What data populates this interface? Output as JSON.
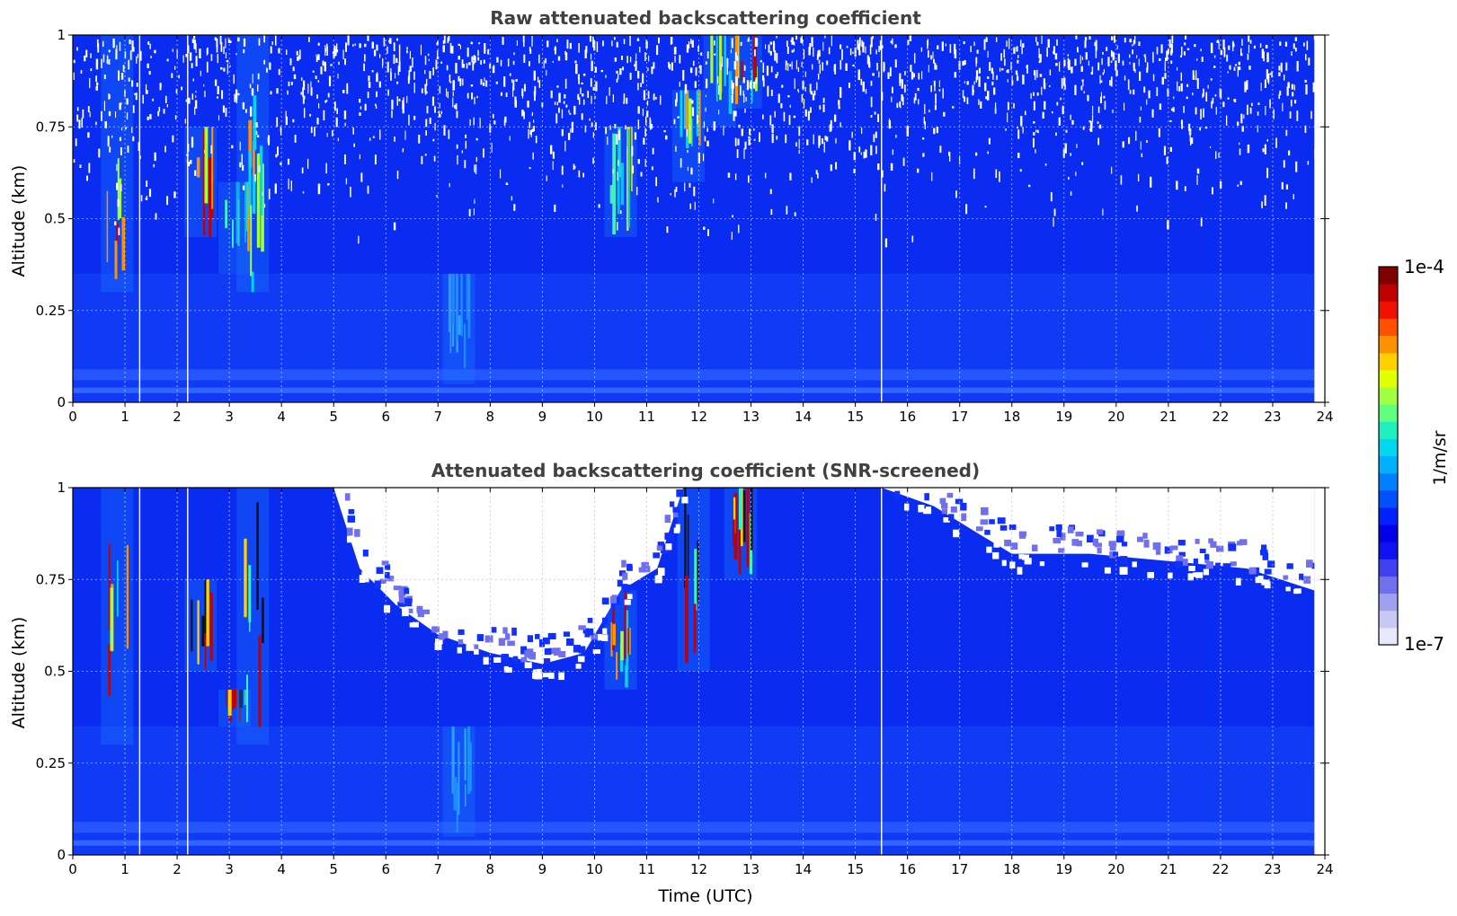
{
  "chart_data": [
    {
      "type": "heatmap",
      "title": "Raw attenuated backscattering coefficient",
      "xlabel": "",
      "ylabel": "Altitude (km)",
      "xlim": [
        0,
        24
      ],
      "ylim": [
        0,
        1
      ],
      "x_ticks": [
        0,
        1,
        2,
        3,
        4,
        5,
        6,
        7,
        8,
        9,
        10,
        11,
        12,
        13,
        14,
        15,
        16,
        17,
        18,
        19,
        20,
        21,
        22,
        23,
        24
      ],
      "y_ticks": [
        0,
        0.25,
        0.5,
        0.75,
        1
      ],
      "y_tick_labels": [
        "0",
        "0.25",
        "0.5",
        "0.75",
        "1"
      ],
      "grid": true,
      "data_end_time": 23.8,
      "gap_times": [
        1.28,
        2.2,
        15.5
      ],
      "screened": false,
      "features": [
        {
          "t": 0.85,
          "alt_bottom": 0.3,
          "alt_top": 1.0,
          "intensity": "high"
        },
        {
          "t": 2.45,
          "alt_bottom": 0.45,
          "alt_top": 0.75,
          "intensity": "high"
        },
        {
          "t": 3.1,
          "alt_bottom": 0.35,
          "alt_top": 0.6,
          "intensity": "medium"
        },
        {
          "t": 3.45,
          "alt_bottom": 0.3,
          "alt_top": 1.0,
          "intensity": "high"
        },
        {
          "t": 7.4,
          "alt_bottom": 0.05,
          "alt_top": 0.35,
          "intensity": "low"
        },
        {
          "t": 10.5,
          "alt_bottom": 0.45,
          "alt_top": 0.75,
          "intensity": "medium"
        },
        {
          "t": 11.8,
          "alt_bottom": 0.6,
          "alt_top": 0.85,
          "intensity": "high"
        },
        {
          "t": 12.4,
          "alt_bottom": 0.75,
          "alt_top": 1.0,
          "intensity": "high"
        },
        {
          "t": 12.9,
          "alt_bottom": 0.8,
          "alt_top": 1.0,
          "intensity": "high"
        }
      ]
    },
    {
      "type": "heatmap",
      "title": "Attenuated backscattering coefficient (SNR-screened)",
      "xlabel": "Time (UTC)",
      "ylabel": "Altitude (km)",
      "xlim": [
        0,
        24
      ],
      "ylim": [
        0,
        1
      ],
      "x_ticks": [
        0,
        1,
        2,
        3,
        4,
        5,
        6,
        7,
        8,
        9,
        10,
        11,
        12,
        13,
        14,
        15,
        16,
        17,
        18,
        19,
        20,
        21,
        22,
        23,
        24
      ],
      "y_ticks": [
        0,
        0.25,
        0.5,
        0.75,
        1
      ],
      "y_tick_labels": [
        "0",
        "0.25",
        "0.5",
        "0.75",
        "1"
      ],
      "grid": true,
      "data_end_time": 23.8,
      "gap_times": [
        1.28,
        2.2,
        15.5
      ],
      "screened": true,
      "screen_boundary": [
        {
          "t": 0.0,
          "alt": 1.0
        },
        {
          "t": 5.0,
          "alt": 1.0
        },
        {
          "t": 5.5,
          "alt": 0.78
        },
        {
          "t": 6.2,
          "alt": 0.68
        },
        {
          "t": 7.0,
          "alt": 0.6
        },
        {
          "t": 8.0,
          "alt": 0.55
        },
        {
          "t": 9.0,
          "alt": 0.52
        },
        {
          "t": 9.8,
          "alt": 0.55
        },
        {
          "t": 10.5,
          "alt": 0.72
        },
        {
          "t": 11.2,
          "alt": 0.78
        },
        {
          "t": 11.7,
          "alt": 1.0
        },
        {
          "t": 13.5,
          "alt": 1.0
        },
        {
          "t": 14.2,
          "alt": 1.0
        },
        {
          "t": 15.5,
          "alt": 1.0
        },
        {
          "t": 16.5,
          "alt": 0.95
        },
        {
          "t": 17.3,
          "alt": 0.88
        },
        {
          "t": 18.0,
          "alt": 0.82
        },
        {
          "t": 19.5,
          "alt": 0.82
        },
        {
          "t": 21.0,
          "alt": 0.8
        },
        {
          "t": 22.5,
          "alt": 0.78
        },
        {
          "t": 23.8,
          "alt": 0.72
        }
      ],
      "features": [
        {
          "t": 0.85,
          "alt_bottom": 0.3,
          "alt_top": 1.0,
          "intensity": "high"
        },
        {
          "t": 2.45,
          "alt_bottom": 0.5,
          "alt_top": 0.75,
          "intensity": "very-high"
        },
        {
          "t": 3.1,
          "alt_bottom": 0.35,
          "alt_top": 0.45,
          "intensity": "very-high"
        },
        {
          "t": 3.45,
          "alt_bottom": 0.3,
          "alt_top": 1.0,
          "intensity": "very-high"
        },
        {
          "t": 7.4,
          "alt_bottom": 0.05,
          "alt_top": 0.35,
          "intensity": "low"
        },
        {
          "t": 10.5,
          "alt_bottom": 0.45,
          "alt_top": 0.72,
          "intensity": "high"
        },
        {
          "t": 11.9,
          "alt_bottom": 0.5,
          "alt_top": 1.0,
          "intensity": "very-high"
        },
        {
          "t": 12.8,
          "alt_bottom": 0.75,
          "alt_top": 1.0,
          "intensity": "very-high"
        }
      ]
    }
  ],
  "colorbar": {
    "label": "1/m/sr",
    "max_label": "1e-4",
    "min_label": "1e-7",
    "scale": "log",
    "range": [
      1e-07,
      0.0001
    ],
    "colormap": "jet",
    "colors": [
      "#e8e8fa",
      "#c8c8f5",
      "#a0a0f0",
      "#7070ee",
      "#4040f0",
      "#1010f0",
      "#0000e6",
      "#0020ff",
      "#0050ff",
      "#0080ff",
      "#00b0ff",
      "#00d8f0",
      "#20f0c0",
      "#60ff80",
      "#a0ff40",
      "#e0ff00",
      "#ffd000",
      "#ff9000",
      "#ff5000",
      "#f01000",
      "#c00000",
      "#800000"
    ]
  }
}
